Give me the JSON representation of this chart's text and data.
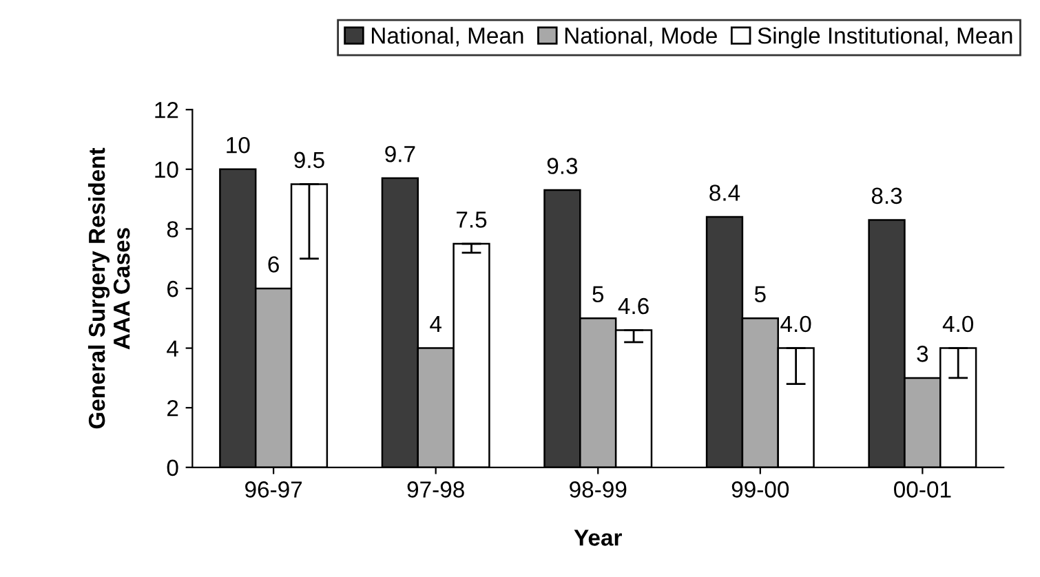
{
  "chart_data": {
    "type": "bar",
    "xlabel": "Year",
    "ylabel": "General Surgery Resident\nAAA Cases",
    "categories": [
      "96-97",
      "97-98",
      "98-99",
      "99-00",
      "00-01"
    ],
    "series": [
      {
        "name": "National, Mean",
        "color": "#3c3c3c",
        "values": [
          10,
          9.7,
          9.3,
          8.4,
          8.3
        ],
        "value_labels": [
          "10",
          "9.7",
          "9.3",
          "8.4",
          "8.3"
        ]
      },
      {
        "name": "National, Mode",
        "color": "#a8a8a8",
        "values": [
          6,
          4,
          5,
          5,
          3
        ],
        "value_labels": [
          "6",
          "4",
          "5",
          "5",
          "3"
        ]
      },
      {
        "name": "Single Institutional, Mean",
        "color": "#ffffff",
        "values": [
          9.5,
          7.5,
          4.6,
          4.0,
          4.0
        ],
        "value_labels": [
          "9.5",
          "7.5",
          "4.6",
          "4.0",
          "4.0"
        ],
        "errors": [
          [
            7.0,
            9.5
          ],
          [
            7.2,
            7.5
          ],
          [
            4.2,
            4.6
          ],
          [
            2.8,
            4.0
          ],
          [
            3.0,
            4.0
          ]
        ]
      }
    ],
    "ylim": [
      0,
      12
    ],
    "yticks": [
      0,
      2,
      4,
      6,
      8,
      10,
      12
    ],
    "grid": false,
    "legend": "top"
  }
}
